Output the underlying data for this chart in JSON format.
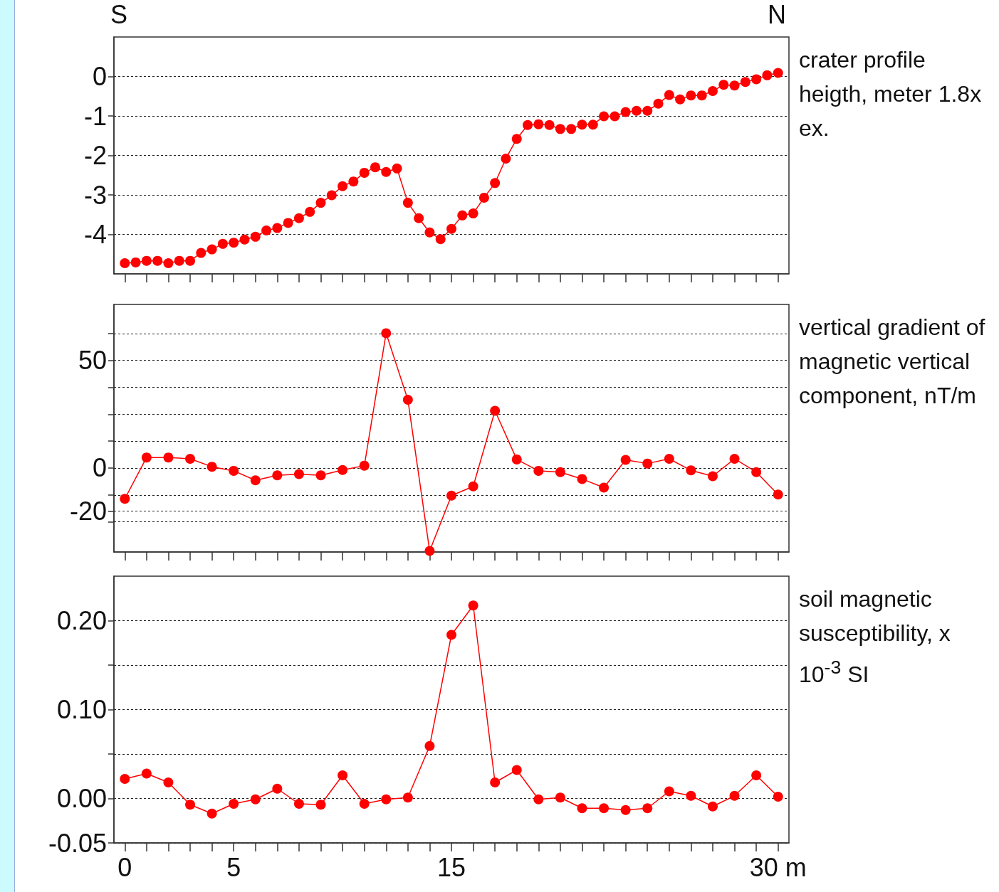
{
  "chart_data": [
    {
      "type": "line",
      "ylabel": "crater profile heigth, meter 1.8x ex.",
      "annotations": [
        "S",
        "N"
      ],
      "tick_labels": "y",
      "grid": "y",
      "marker": "circle",
      "line_style": "solid",
      "color": "#ff0000",
      "x": [
        0,
        0.5,
        1,
        1.5,
        2,
        2.5,
        3,
        3.5,
        4,
        4.5,
        5,
        5.5,
        6,
        6.5,
        7,
        7.5,
        8,
        8.5,
        9,
        9.5,
        10,
        10.5,
        11,
        11.5,
        12,
        12.5,
        13,
        13.5,
        14,
        14.5,
        15,
        15.5,
        16,
        16.5,
        17,
        17.5,
        18,
        18.5,
        19,
        19.5,
        20,
        20.5,
        21,
        21.5,
        22,
        22.5,
        23,
        23.5,
        24,
        24.5,
        25,
        25.5,
        26,
        26.5,
        27,
        27.5,
        28,
        28.5,
        29,
        29.5,
        30
      ],
      "values": [
        -4.73,
        -4.71,
        -4.67,
        -4.67,
        -4.73,
        -4.67,
        -4.67,
        -4.47,
        -4.38,
        -4.24,
        -4.21,
        -4.13,
        -4.06,
        -3.9,
        -3.84,
        -3.71,
        -3.59,
        -3.43,
        -3.2,
        -3.01,
        -2.78,
        -2.66,
        -2.44,
        -2.3,
        -2.42,
        -2.33,
        -3.2,
        -3.59,
        -3.95,
        -4.12,
        -3.86,
        -3.52,
        -3.47,
        -3.07,
        -2.7,
        -2.08,
        -1.58,
        -1.23,
        -1.21,
        -1.23,
        -1.33,
        -1.33,
        -1.22,
        -1.22,
        -1.01,
        -1.01,
        -0.9,
        -0.87,
        -0.87,
        -0.69,
        -0.47,
        -0.58,
        -0.48,
        -0.48,
        -0.37,
        -0.21,
        -0.23,
        -0.14,
        -0.07,
        0.03,
        0.09
      ],
      "xlim": [
        -0.5,
        30.5
      ],
      "ylim": [
        -5,
        1
      ],
      "yticks": [
        0,
        -1,
        -2,
        -3,
        -4
      ],
      "xticks": [
        0,
        1,
        2,
        3,
        4,
        5,
        6,
        7,
        8,
        9,
        10,
        11,
        12,
        13,
        14,
        15,
        16,
        17,
        18,
        19,
        20,
        21,
        22,
        23,
        24,
        25,
        26,
        27,
        28,
        29,
        30
      ]
    },
    {
      "type": "line",
      "ylabel": "vertical gradient of magnetic vertical component, nT/m",
      "tick_labels": "y",
      "grid": "y",
      "marker": "circle",
      "line_style": "solid",
      "color": "#ff0000",
      "x": [
        0,
        1,
        2,
        3,
        4,
        5,
        6,
        7,
        8,
        9,
        10,
        11,
        12,
        13,
        14,
        15,
        16,
        17,
        18,
        19,
        20,
        21,
        22,
        23,
        24,
        25,
        26,
        27,
        28,
        29,
        30
      ],
      "values": [
        -14.3,
        4.9,
        4.9,
        4.3,
        0.6,
        -1.3,
        -5.7,
        -3.4,
        -2.8,
        -3.4,
        -0.9,
        1.1,
        62.6,
        31.7,
        -38.5,
        -12.8,
        -8.5,
        26.6,
        4.0,
        -1.3,
        -1.9,
        -5.1,
        -9.1,
        3.8,
        2.1,
        4.3,
        -1.1,
        -3.8,
        4.3,
        -1.9,
        -12.3
      ],
      "xlim": [
        -0.5,
        30.5
      ],
      "ylim": [
        -39,
        76
      ],
      "yticks": [
        {
          "value": 62.5,
          "label": null
        },
        50,
        {
          "value": 37.5,
          "label": null
        },
        {
          "value": 25,
          "label": null
        },
        {
          "value": 12.5,
          "label": null
        },
        0,
        {
          "value": -12.5,
          "label": null
        },
        {
          "value": -20,
          "label": "-20"
        },
        {
          "value": -25,
          "label": null
        }
      ],
      "xticks": [
        0,
        1,
        2,
        3,
        4,
        5,
        6,
        7,
        8,
        9,
        10,
        11,
        12,
        13,
        14,
        15,
        16,
        17,
        18,
        19,
        20,
        21,
        22,
        23,
        24,
        25,
        26,
        27,
        28,
        29,
        30
      ]
    },
    {
      "type": "line",
      "ylabel": "soil magnetic susceptibility, x 10$^{-3}$ SI",
      "grid": "y",
      "marker": "circle",
      "line_style": "solid",
      "color": "#ff0000",
      "x": [
        0,
        1,
        2,
        3,
        4,
        5,
        6,
        7,
        8,
        9,
        10,
        11,
        12,
        13,
        14,
        15,
        16,
        17,
        18,
        19,
        20,
        21,
        22,
        23,
        24,
        25,
        26,
        27,
        28,
        29,
        30
      ],
      "values": [
        0.022,
        0.028,
        0.018,
        -0.007,
        -0.017,
        -0.006,
        -0.001,
        0.011,
        -0.006,
        -0.007,
        0.026,
        -0.006,
        -0.001,
        0.001,
        0.059,
        0.184,
        0.217,
        0.018,
        0.032,
        -0.001,
        0.001,
        -0.011,
        -0.011,
        -0.013,
        -0.011,
        0.008,
        0.003,
        -0.009,
        0.003,
        0.026,
        0.002
      ],
      "xlim": [
        -0.5,
        30.5
      ],
      "ylim": [
        -0.05,
        0.25
      ],
      "yticks": [
        {
          "value": 0.2,
          "label": "0.20"
        },
        {
          "value": 0.15,
          "label": null
        },
        {
          "value": 0.1,
          "label": "0.10"
        },
        {
          "value": 0.05,
          "label": null
        },
        {
          "value": 0,
          "label": "0.00"
        },
        {
          "value": -0.05,
          "label": "-0.05"
        }
      ],
      "xticks": [
        0,
        {
          "value": 1,
          "label": null
        },
        {
          "value": 2,
          "label": null
        },
        {
          "value": 3,
          "label": null
        },
        {
          "value": 4,
          "label": null
        },
        5,
        {
          "value": 6,
          "label": null
        },
        {
          "value": 7,
          "label": null
        },
        {
          "value": 8,
          "label": null
        },
        {
          "value": 9,
          "label": null
        },
        {
          "value": 10,
          "label": null
        },
        {
          "value": 11,
          "label": null
        },
        {
          "value": 12,
          "label": null
        },
        {
          "value": 13,
          "label": null
        },
        {
          "value": 14,
          "label": null
        },
        15,
        {
          "value": 16,
          "label": null
        },
        {
          "value": 17,
          "label": null
        },
        {
          "value": 18,
          "label": null
        },
        {
          "value": 19,
          "label": null
        },
        {
          "value": 20,
          "label": null
        },
        {
          "value": 21,
          "label": null
        },
        {
          "value": 22,
          "label": null
        },
        {
          "value": 23,
          "label": null
        },
        {
          "value": 24,
          "label": null
        },
        {
          "value": 25,
          "label": null
        },
        {
          "value": 26,
          "label": null
        },
        {
          "value": 27,
          "label": null
        },
        {
          "value": 28,
          "label": null
        },
        {
          "value": 29,
          "label": null
        },
        {
          "value": 30,
          "label": "30 m"
        }
      ]
    }
  ]
}
